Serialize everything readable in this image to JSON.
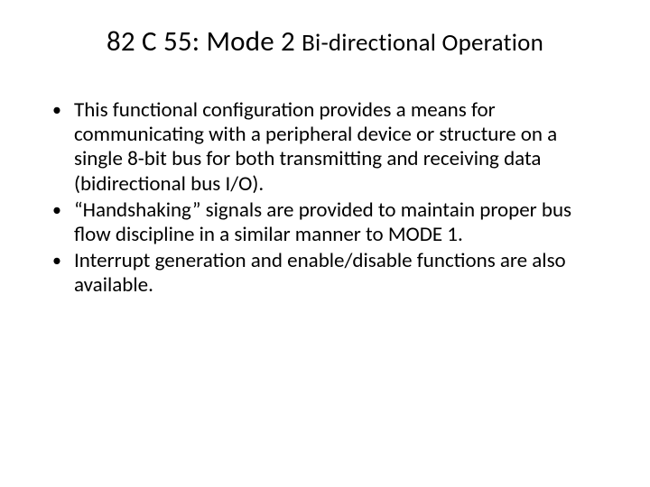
{
  "slide": {
    "title_main": "82 C 55: Mode 2 ",
    "title_sub": "Bi-directional Operation",
    "bullets": [
      "This functional configuration provides a means for communicating with a peripheral device or structure on a single 8-bit bus for both transmitting and receiving data (bidirectional bus I/O).",
      "“Handshaking” signals are provided to maintain proper bus flow discipline in a similar manner to MODE 1.",
      "Interrupt generation and enable/disable functions are also available."
    ]
  },
  "style": {
    "background_color": "#ffffff",
    "text_color": "#000000",
    "title_fontsize": 31,
    "title_sub_fontsize": 27,
    "body_fontsize": 23,
    "font_family": "Calibri"
  }
}
